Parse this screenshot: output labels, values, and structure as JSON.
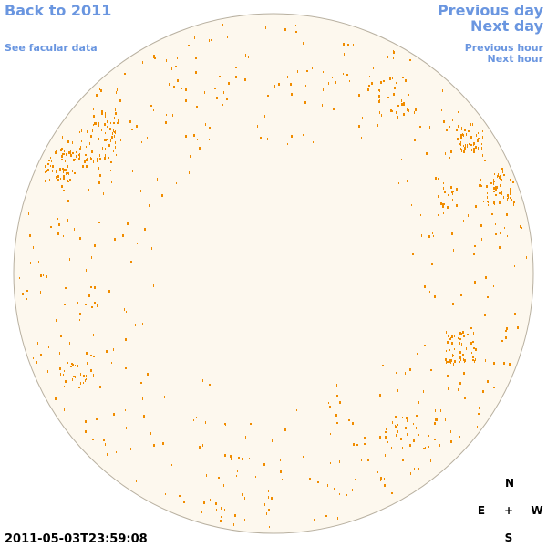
{
  "header": {
    "back_link": "Back to 2011",
    "facular_link": "See facular data",
    "previous_day": "Previous day",
    "next_day": "Next day",
    "previous_hour": "Previous hour",
    "next_hour": "Next hour"
  },
  "timestamp": "2011-05-03T23:59:08",
  "compass": {
    "north": "N",
    "east": "E",
    "center": "+",
    "west": "W",
    "south": "S"
  }
}
